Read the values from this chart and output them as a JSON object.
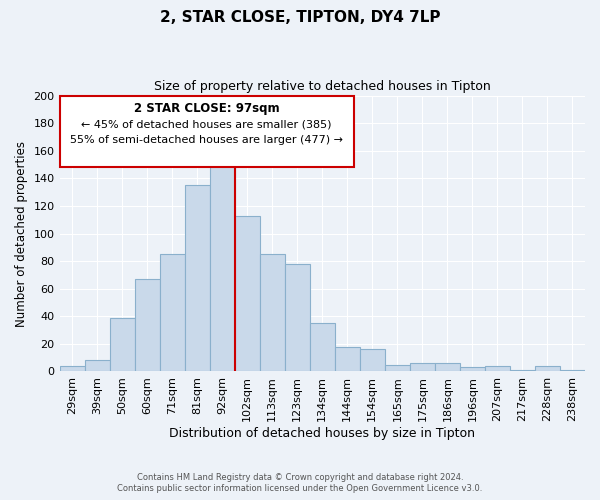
{
  "title": "2, STAR CLOSE, TIPTON, DY4 7LP",
  "subtitle": "Size of property relative to detached houses in Tipton",
  "xlabel": "Distribution of detached houses by size in Tipton",
  "ylabel": "Number of detached properties",
  "bar_color": "#c9d9ea",
  "bar_edge_color": "#8ab0cc",
  "background_color": "#edf2f8",
  "grid_color": "#ffffff",
  "categories": [
    "29sqm",
    "39sqm",
    "50sqm",
    "60sqm",
    "71sqm",
    "81sqm",
    "92sqm",
    "102sqm",
    "113sqm",
    "123sqm",
    "134sqm",
    "144sqm",
    "154sqm",
    "165sqm",
    "175sqm",
    "186sqm",
    "196sqm",
    "207sqm",
    "217sqm",
    "228sqm",
    "238sqm"
  ],
  "values": [
    4,
    8,
    39,
    67,
    85,
    135,
    160,
    113,
    85,
    78,
    35,
    18,
    16,
    5,
    6,
    6,
    3,
    4,
    1,
    4,
    1
  ],
  "ylim": [
    0,
    200
  ],
  "yticks": [
    0,
    20,
    40,
    60,
    80,
    100,
    120,
    140,
    160,
    180,
    200
  ],
  "vline_x": 6.5,
  "vline_color": "#cc0000",
  "annotation_title": "2 STAR CLOSE: 97sqm",
  "annotation_line1": "← 45% of detached houses are smaller (385)",
  "annotation_line2": "55% of semi-detached houses are larger (477) →",
  "annotation_box_color": "#ffffff",
  "annotation_box_edge": "#cc0000",
  "footer1": "Contains HM Land Registry data © Crown copyright and database right 2024.",
  "footer2": "Contains public sector information licensed under the Open Government Licence v3.0."
}
